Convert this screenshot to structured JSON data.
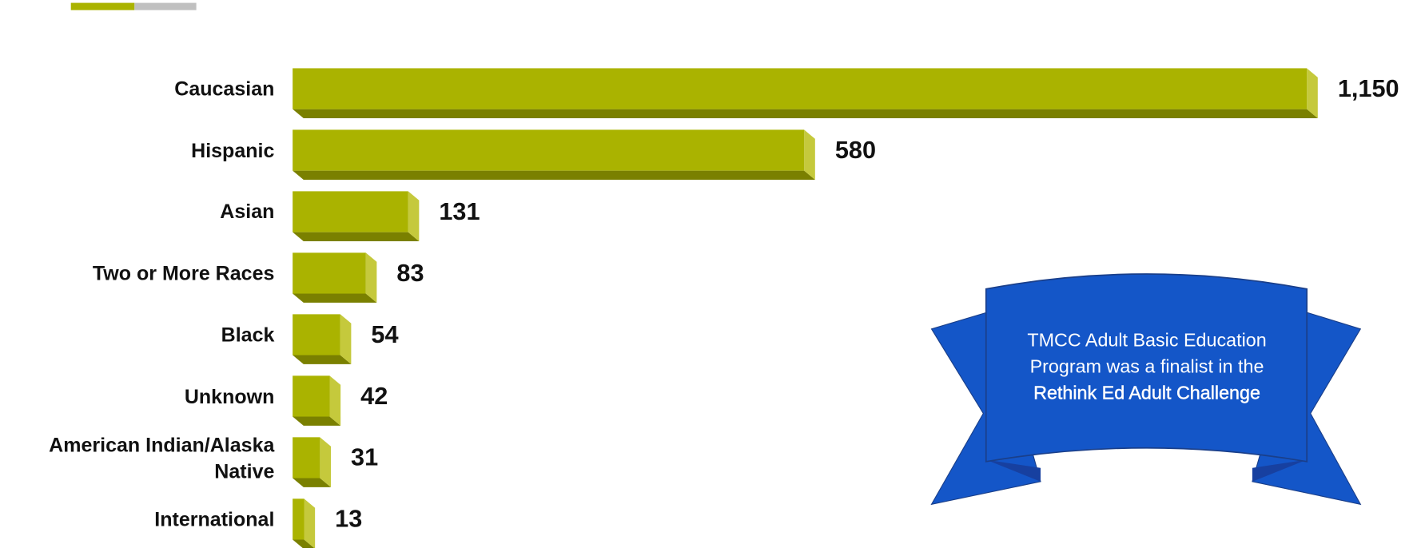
{
  "chart_data": {
    "type": "bar",
    "orientation": "horizontal",
    "categories": [
      "Caucasian",
      "Hispanic",
      "Asian",
      "Two or More Races",
      "Black",
      "Unknown",
      "American Indian/Alaska Native",
      "International"
    ],
    "values": [
      1150,
      580,
      131,
      83,
      54,
      42,
      31,
      13
    ],
    "value_labels": [
      "1,150",
      "580",
      "131",
      "83",
      "54",
      "42",
      "31",
      "13"
    ],
    "color": "#aab300"
  },
  "annotation": {
    "text": "TMCC Adult Basic Education Program was a finalist in the",
    "highlight": "Rethink Ed Adult Challenge"
  }
}
